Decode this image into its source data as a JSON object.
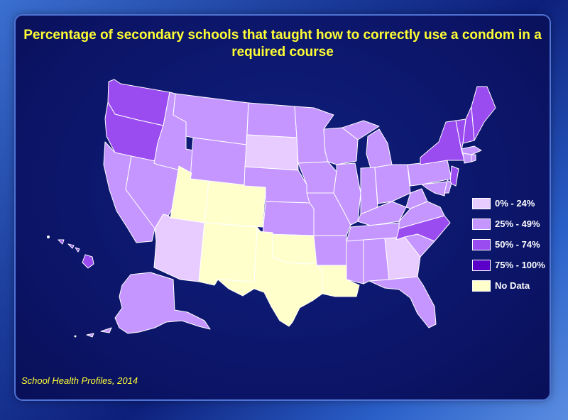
{
  "title": "Percentage of secondary schools that taught how to correctly use a condom in a required course",
  "source": "School Health Profiles, 2014",
  "legend": [
    {
      "label": "0% - 24%",
      "color": "#e8ccff"
    },
    {
      "label": "25% - 49%",
      "color": "#c596ff"
    },
    {
      "label": "50% - 74%",
      "color": "#9a4cf0"
    },
    {
      "label": "75% - 100%",
      "color": "#5a00c8"
    },
    {
      "label": "No Data",
      "color": "#ffffcc"
    }
  ],
  "map_data": {
    "categories": {
      "0% - 24%": [
        "South Dakota",
        "Arizona",
        "Georgia"
      ],
      "50% - 74%": [
        "Washington",
        "Oregon",
        "New York",
        "Vermont",
        "New Hampshire",
        "Maine",
        "New Jersey",
        "North Carolina",
        "Hawaii"
      ],
      "No Data": [
        "Utah",
        "Colorado",
        "New Mexico",
        "Texas",
        "Oklahoma",
        "Louisiana"
      ],
      "25% - 49%": "all other states"
    }
  }
}
